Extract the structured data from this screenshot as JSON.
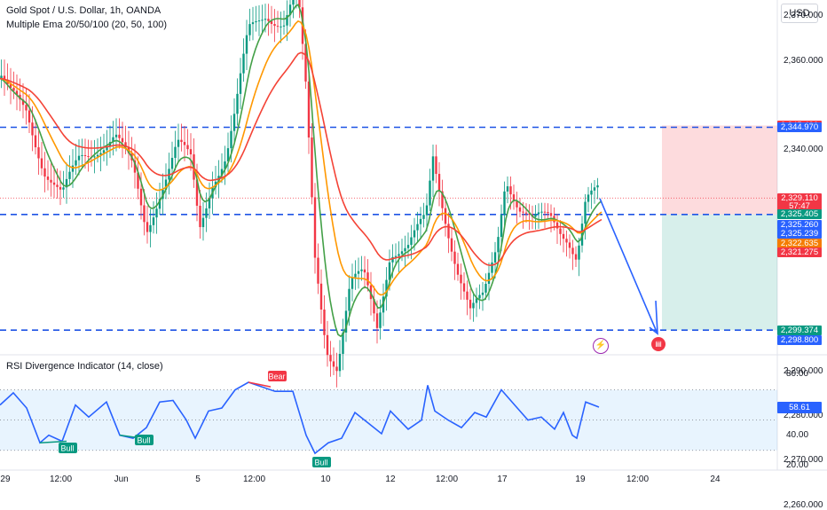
{
  "legend": {
    "symbol": "Gold Spot / U.S. Dollar, 1h, OANDA",
    "indicator": "Multiple Ema 20/50/100 (20, 50, 100)",
    "rsi": "RSI Divergence Indicator (14, close)"
  },
  "currency_button": "USD",
  "price_axis": [
    {
      "label": "2,370.000",
      "value": 2370
    },
    {
      "label": "2,360.000",
      "value": 2360
    },
    {
      "label": "2,340.000",
      "value": 2340
    },
    {
      "label": "2,290.000",
      "value": 2290
    },
    {
      "label": "2,280.000",
      "value": 2280
    },
    {
      "label": "2,270.000",
      "value": 2270
    },
    {
      "label": "2,260.000",
      "value": 2260
    }
  ],
  "price_tags": [
    {
      "label": "2,345.430",
      "value": 2345.43,
      "color": "#f23645"
    },
    {
      "label": "2,344.970",
      "value": 2344.97,
      "color": "#2962ff"
    },
    {
      "label": "2,329.110",
      "value": 2329.11,
      "color": "#f23645"
    },
    {
      "label": "57:47",
      "value": 2327.2,
      "color": "#f23645"
    },
    {
      "label": "2,325.405",
      "value": 2325.405,
      "color": "#089981"
    },
    {
      "label": "2,325.260",
      "value": 2323.1,
      "color": "#2962ff"
    },
    {
      "label": "2,325.239",
      "value": 2321.0,
      "color": "#2962ff"
    },
    {
      "label": "2,322.635",
      "value": 2318.9,
      "color": "#f57c00"
    },
    {
      "label": "2,321.275",
      "value": 2316.8,
      "color": "#f23645"
    },
    {
      "label": "2,299.374",
      "value": 2299.374,
      "color": "#089981"
    },
    {
      "label": "2,298.800",
      "value": 2297.2,
      "color": "#2962ff"
    }
  ],
  "rsi_axis": [
    {
      "label": "80.00",
      "value": 80
    },
    {
      "label": "40.00",
      "value": 40
    },
    {
      "label": "20.00",
      "value": 20
    }
  ],
  "rsi_current": {
    "label": "58.61",
    "value": 58.61
  },
  "time_axis": [
    "29",
    "12:00",
    "Jun",
    "5",
    "12:00",
    "10",
    "12",
    "12:00",
    "17",
    "19",
    "12:00",
    "24"
  ],
  "rsi_badges": [
    "Bull",
    "Bull",
    "Bull",
    "Bear"
  ],
  "event_icons": [
    "lightning-icon",
    "us-flag-icon"
  ],
  "trade_levels": {
    "stop": 2345.43,
    "entry": 2325.405,
    "target": 2299.374
  },
  "colors": {
    "ema20": "#43a047",
    "ema50": "#ff9800",
    "ema100": "#f44336",
    "rsi_line": "#2962ff",
    "up": "#089981",
    "down": "#f23645"
  }
}
